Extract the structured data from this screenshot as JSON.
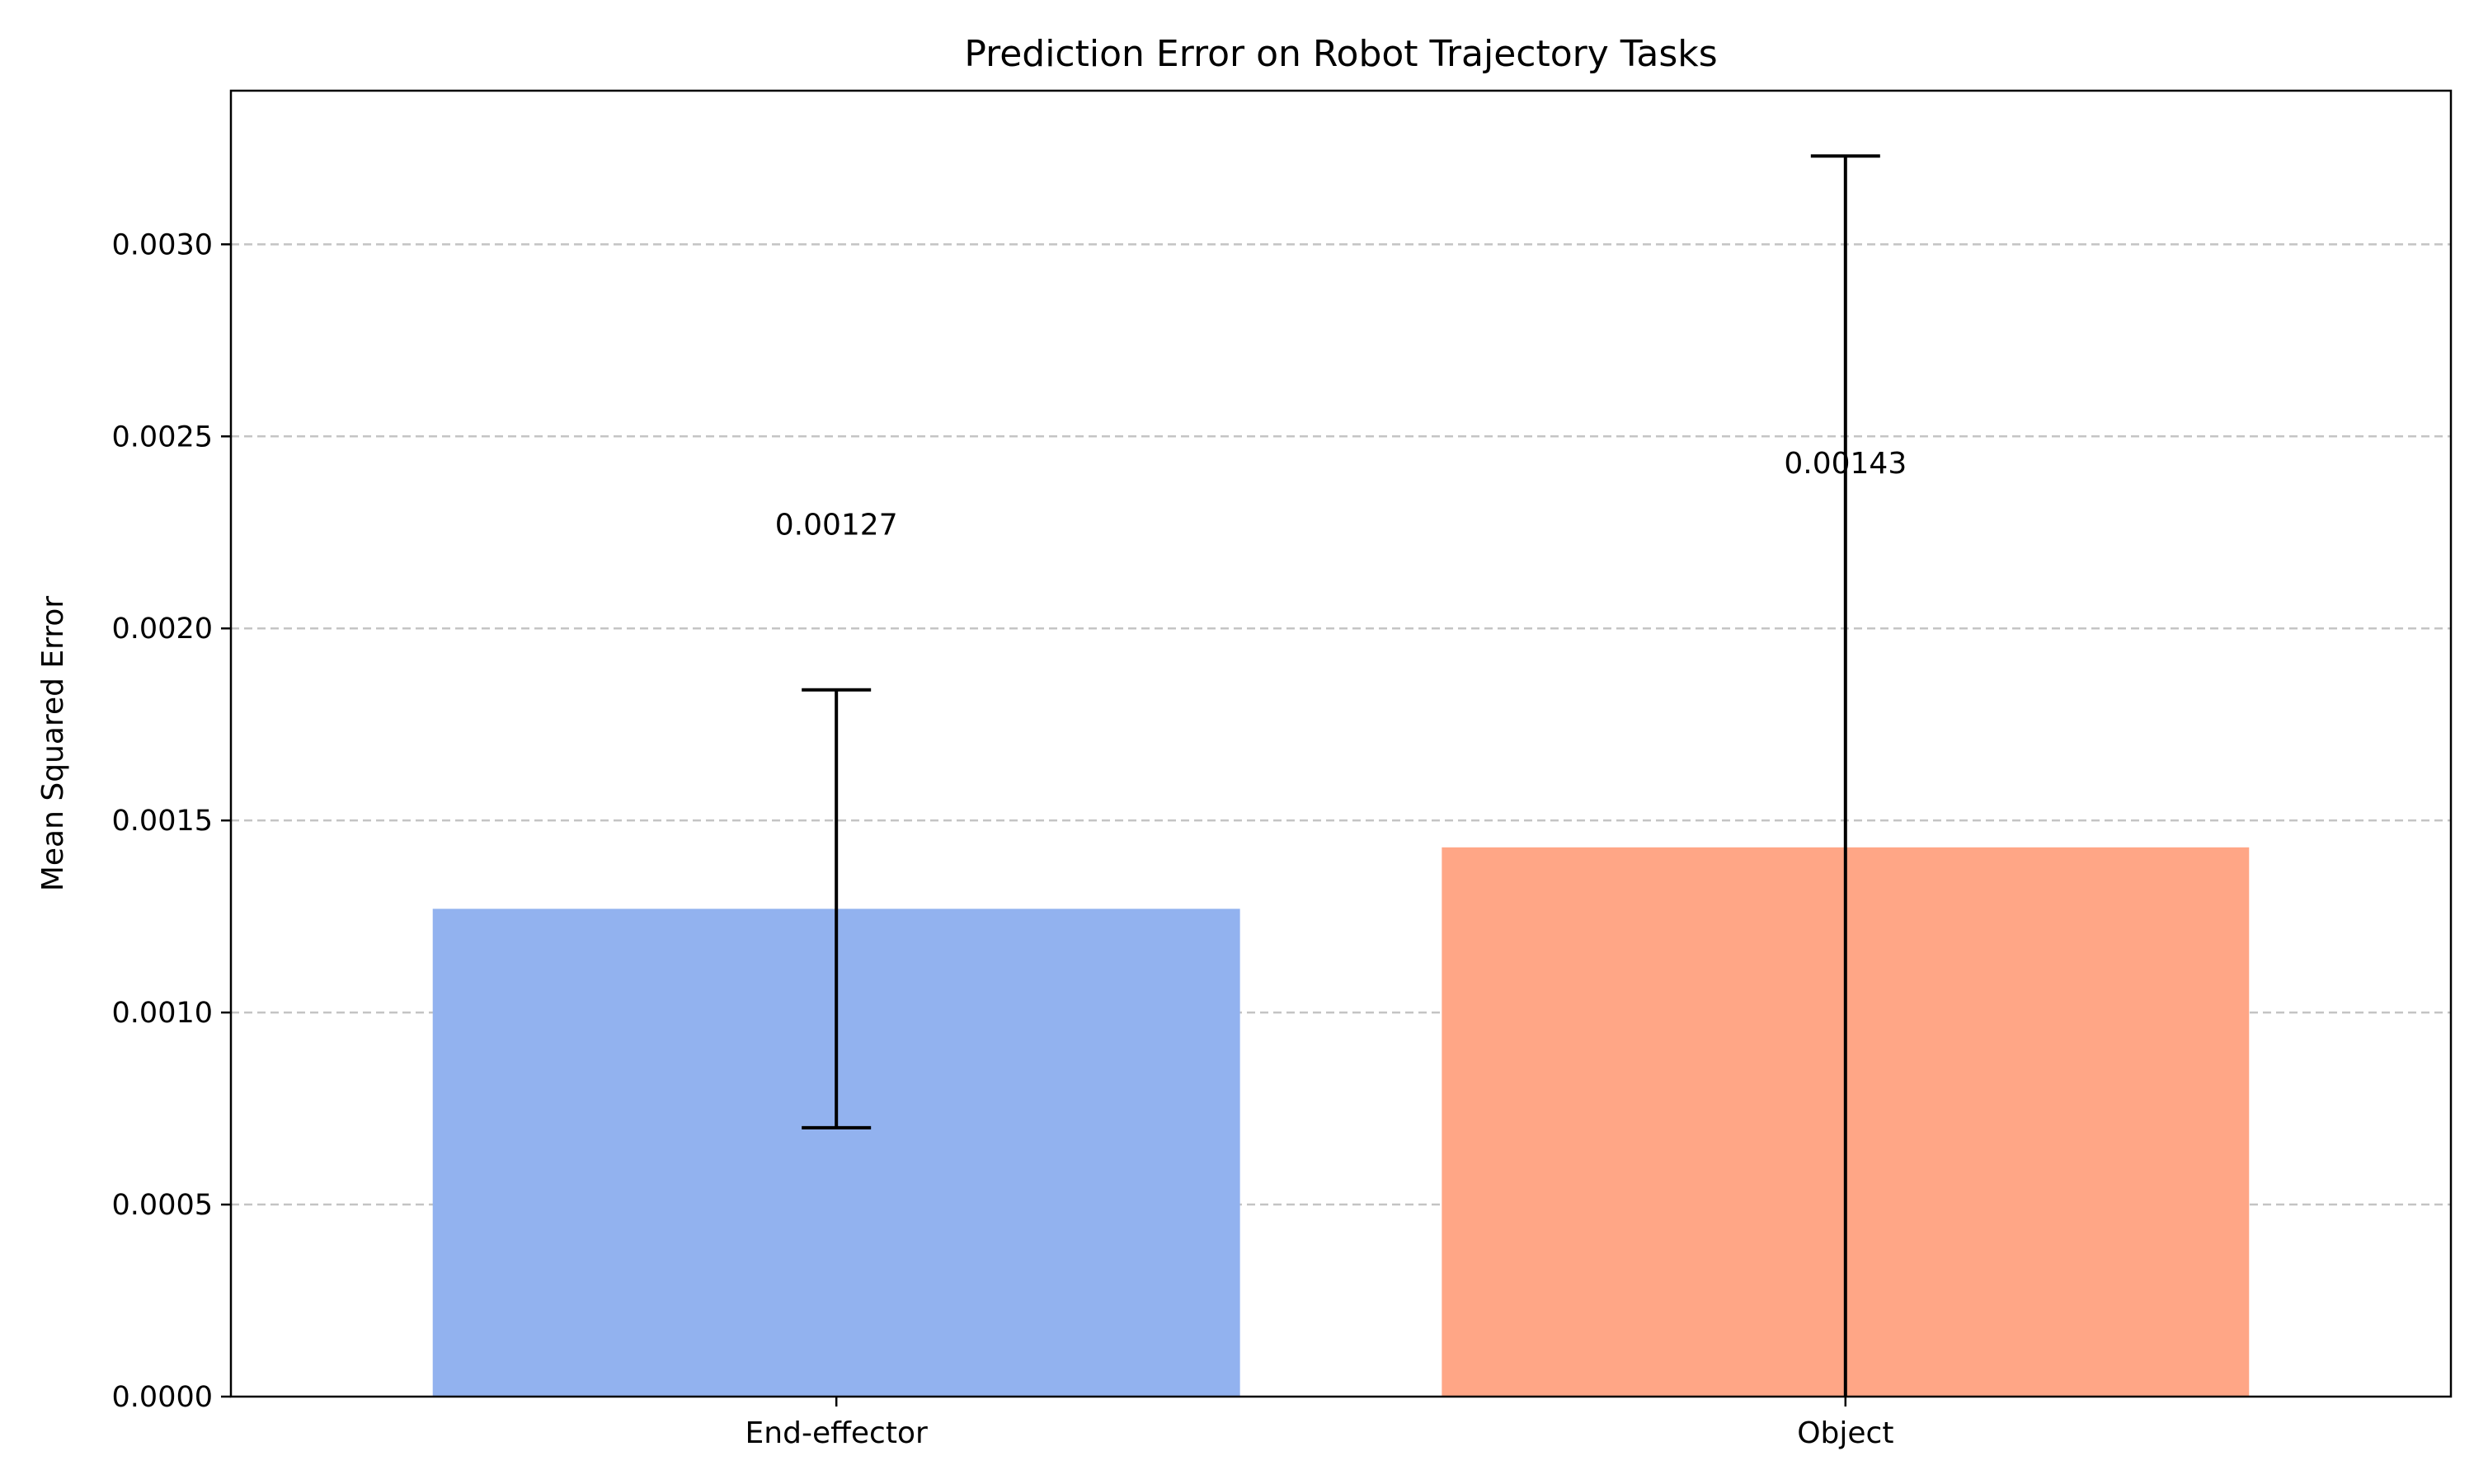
{
  "chart_data": {
    "type": "bar",
    "title": "Prediction Error on Robot Trajectory Tasks",
    "xlabel": "",
    "ylabel": "Mean Squared Error",
    "categories": [
      "End-effector",
      "Object"
    ],
    "values": [
      0.00127,
      0.00143
    ],
    "errors": [
      0.00057,
      0.0018
    ],
    "value_labels": [
      "0.00127",
      "0.00143"
    ],
    "colors": [
      "#92b2ef",
      "#ffa686"
    ],
    "ylim": [
      0,
      0.0034
    ],
    "yticks": [
      0,
      0.0005,
      0.001,
      0.0015,
      0.002,
      0.0025,
      0.003
    ],
    "ytick_labels": [
      "0.0000",
      "0.0005",
      "0.0010",
      "0.0015",
      "0.0020",
      "0.0025",
      "0.0030"
    ],
    "grid": "y",
    "legend": "none"
  }
}
